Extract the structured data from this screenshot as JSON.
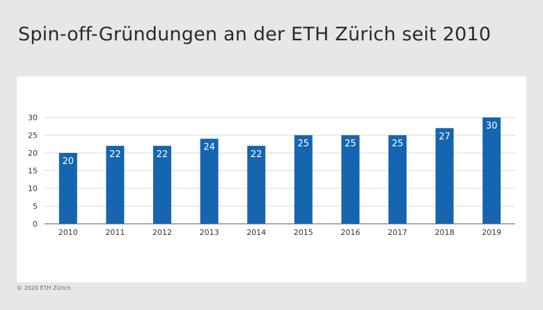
{
  "title": "Spin-off-Gründungen an der ETH Zürich seit 2010",
  "copyright": "© 2020 ETH Zürich",
  "colors": {
    "bar": "#1565b0",
    "grid": "#d9d9d9",
    "axis": "#555555",
    "background": "#e7e7e7",
    "panel": "#ffffff"
  },
  "chart_data": {
    "type": "bar",
    "categories": [
      "2010",
      "2011",
      "2012",
      "2013",
      "2014",
      "2015",
      "2016",
      "2017",
      "2018",
      "2019"
    ],
    "values": [
      20,
      22,
      22,
      24,
      22,
      25,
      25,
      25,
      27,
      30
    ],
    "value_labels": [
      "20",
      "22",
      "22",
      "24",
      "22",
      "25",
      "25",
      "25",
      "27",
      "30"
    ],
    "title": "Spin-off-Gründungen an der ETH Zürich seit 2010",
    "xlabel": "",
    "ylabel": "",
    "ylim": [
      0,
      30
    ],
    "yticks": [
      "0",
      "5",
      "10",
      "15",
      "20",
      "25",
      "30"
    ],
    "grid": true,
    "legend": "none"
  }
}
